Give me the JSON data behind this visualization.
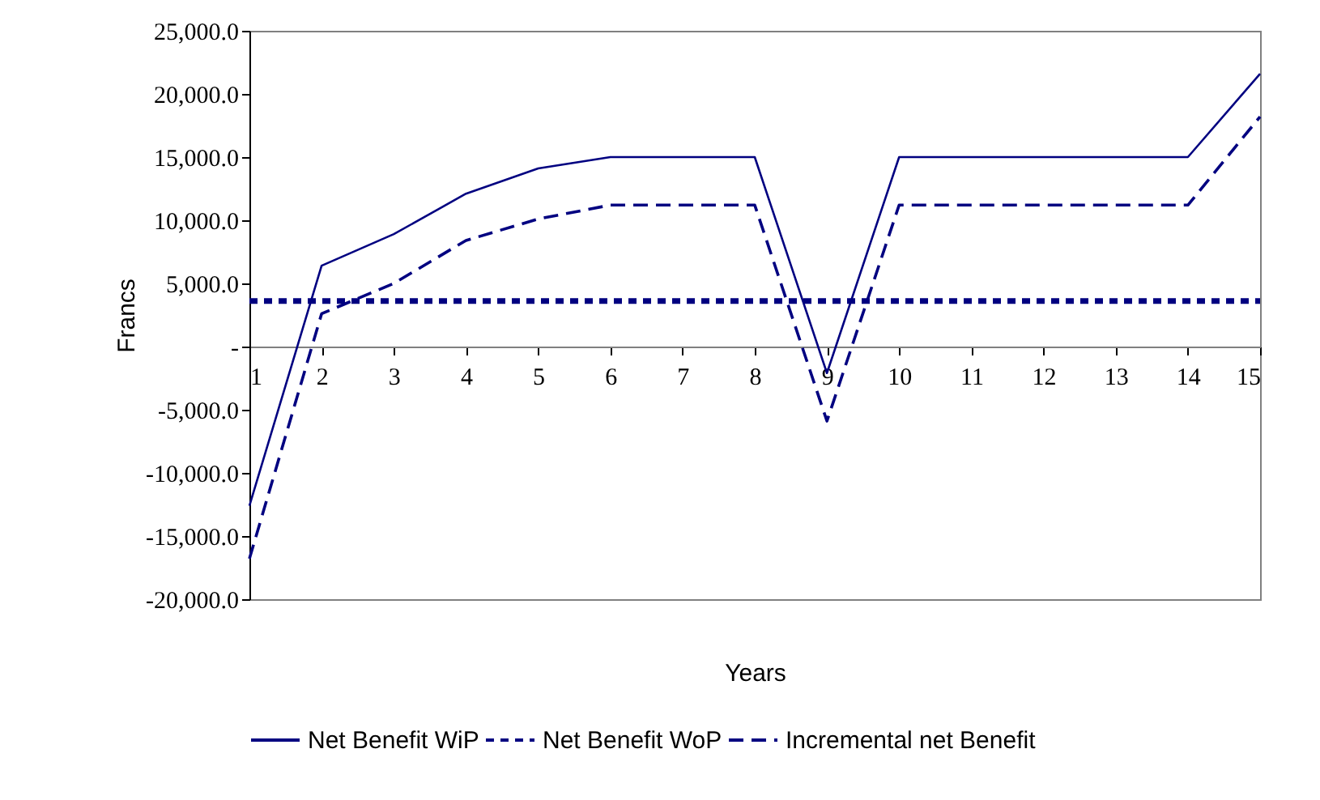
{
  "chart_data": {
    "type": "line",
    "xlabel": "Years",
    "ylabel": "Francs",
    "x": [
      1,
      2,
      3,
      4,
      5,
      6,
      7,
      8,
      9,
      10,
      11,
      12,
      13,
      14,
      15
    ],
    "series": [
      {
        "name": "Net Benefit WiP",
        "color": "#000080",
        "line_style": "solid",
        "values": [
          -12600,
          6400,
          8900,
          12100,
          14100,
          15000,
          15000,
          15000,
          -2100,
          15000,
          15000,
          15000,
          15000,
          15000,
          21600
        ]
      },
      {
        "name": "Net Benefit WoP",
        "color": "#000080",
        "line_style": "dotted",
        "values": [
          3600,
          3600,
          3600,
          3600,
          3600,
          3600,
          3600,
          3600,
          3600,
          3600,
          3600,
          3600,
          3600,
          3600,
          3600
        ]
      },
      {
        "name": "Incremental net Benefit",
        "color": "#000080",
        "line_style": "dashed",
        "values": [
          -16800,
          2600,
          5000,
          8400,
          10100,
          11200,
          11200,
          11200,
          -5900,
          11200,
          11200,
          11200,
          11200,
          11200,
          18200
        ]
      }
    ],
    "xlim": [
      1,
      15
    ],
    "xticks": [
      1,
      2,
      3,
      4,
      5,
      6,
      7,
      8,
      9,
      10,
      11,
      12,
      13,
      14,
      15
    ],
    "ylim": [
      -20000,
      25000
    ],
    "yticks": [
      {
        "value": -20000,
        "label": "-20,000.0"
      },
      {
        "value": -15000,
        "label": "-15,000.0"
      },
      {
        "value": -10000,
        "label": "-10,000.0"
      },
      {
        "value": -5000,
        "label": "-5,000.0"
      },
      {
        "value": 0,
        "label": "-"
      },
      {
        "value": 5000,
        "label": "5,000.0"
      },
      {
        "value": 10000,
        "label": "10,000.0"
      },
      {
        "value": 15000,
        "label": "15,000.0"
      },
      {
        "value": 20000,
        "label": "20,000.0"
      },
      {
        "value": 25000,
        "label": "25,000.0"
      }
    ],
    "grid": false,
    "legend": "bottom",
    "marker": "none"
  }
}
